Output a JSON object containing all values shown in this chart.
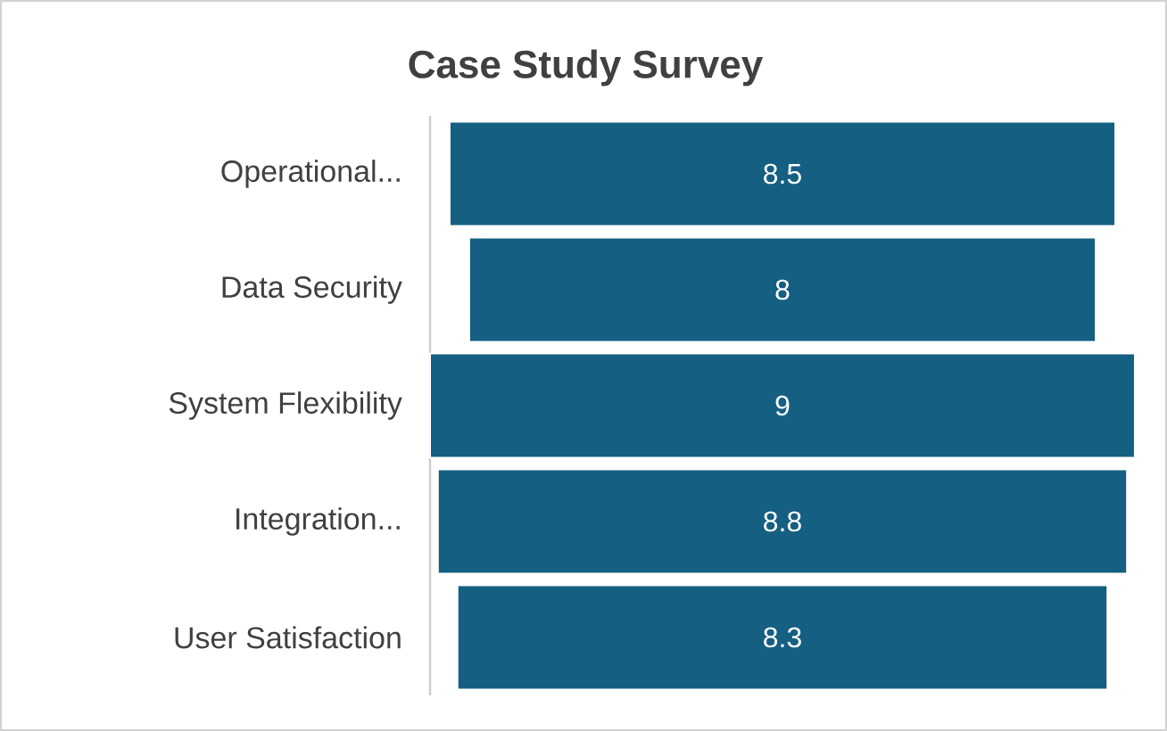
{
  "chart_data": {
    "type": "other",
    "title": "Case Study Survey",
    "categories": [
      "Operational...",
      "Data Security",
      "System Flexibility",
      "Integration...",
      "User Satisfaction"
    ],
    "values": [
      8.5,
      8,
      9,
      8.8,
      8.3
    ],
    "color": "#155f82",
    "data_labels": true
  }
}
